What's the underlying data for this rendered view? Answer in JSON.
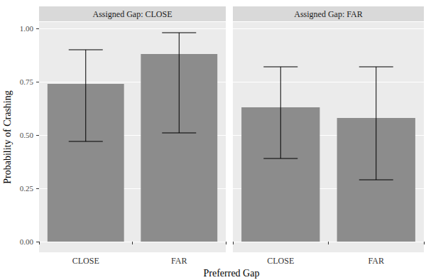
{
  "chart_data": [
    {
      "type": "bar",
      "title": "Assigned Gap: CLOSE",
      "categories": [
        "CLOSE",
        "FAR"
      ],
      "values": [
        0.74,
        0.88
      ],
      "error_low": [
        0.47,
        0.51
      ],
      "error_high": [
        0.9,
        0.98
      ],
      "color": "#8c8c8c",
      "ylim": [
        -0.05,
        1.03
      ],
      "yticks": [
        {
          "value": 0,
          "label": "0.00"
        },
        {
          "value": 0.25,
          "label": "0.25"
        },
        {
          "value": 0.5,
          "label": "0.50"
        },
        {
          "value": 0.75,
          "label": "0.75"
        },
        {
          "value": 1,
          "label": "1.00"
        }
      ],
      "grid": true
    },
    {
      "type": "bar",
      "title": "Assigned Gap: FAR",
      "categories": [
        "CLOSE",
        "FAR"
      ],
      "values": [
        0.63,
        0.58
      ],
      "error_low": [
        0.39,
        0.29
      ],
      "error_high": [
        0.82,
        0.82
      ],
      "color": "#8c8c8c",
      "ylim": [
        -0.05,
        1.03
      ],
      "yticks": [
        {
          "value": 0,
          "label": "0.00"
        },
        {
          "value": 0.25,
          "label": "0.25"
        },
        {
          "value": 0.5,
          "label": "0.50"
        },
        {
          "value": 0.75,
          "label": "0.75"
        },
        {
          "value": 1,
          "label": "1.00"
        }
      ],
      "grid": true,
      "tick_labels": "x"
    }
  ],
  "xlabel": "Preferred Gap",
  "ylabel": "Probability of Crashing"
}
